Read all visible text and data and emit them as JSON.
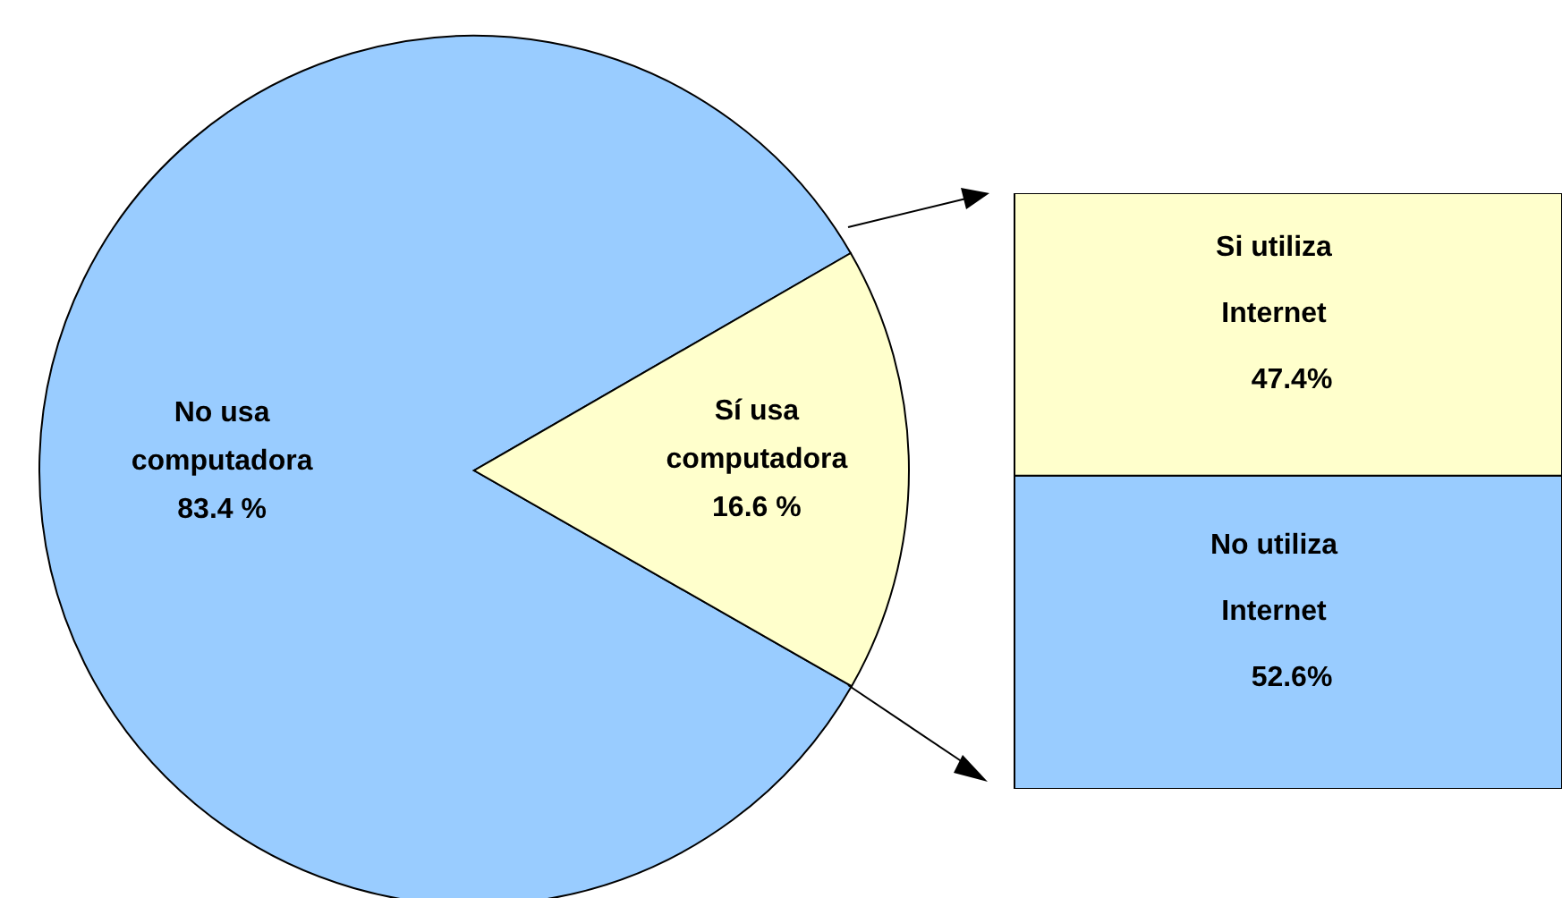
{
  "chart_data": [
    {
      "type": "pie",
      "categories": [
        "No usa computadora",
        "Sí  usa computadora"
      ],
      "values": [
        83.4,
        16.6
      ],
      "colors": [
        "#99ccff",
        "#ffffcc"
      ],
      "value_labels": [
        "83.4 %",
        "16.6 %"
      ]
    },
    {
      "type": "bar",
      "stacked": true,
      "categories": [
        null
      ],
      "series": [
        {
          "name": "No utiliza Internet",
          "color": "#99ccff",
          "values": [
            52.6
          ],
          "value_labels": [
            "52.6%"
          ]
        },
        {
          "name": "Si utiliza Internet",
          "color": "#ffffcc",
          "values": [
            47.4
          ],
          "value_labels": [
            "47.4%"
          ]
        }
      ]
    }
  ]
}
